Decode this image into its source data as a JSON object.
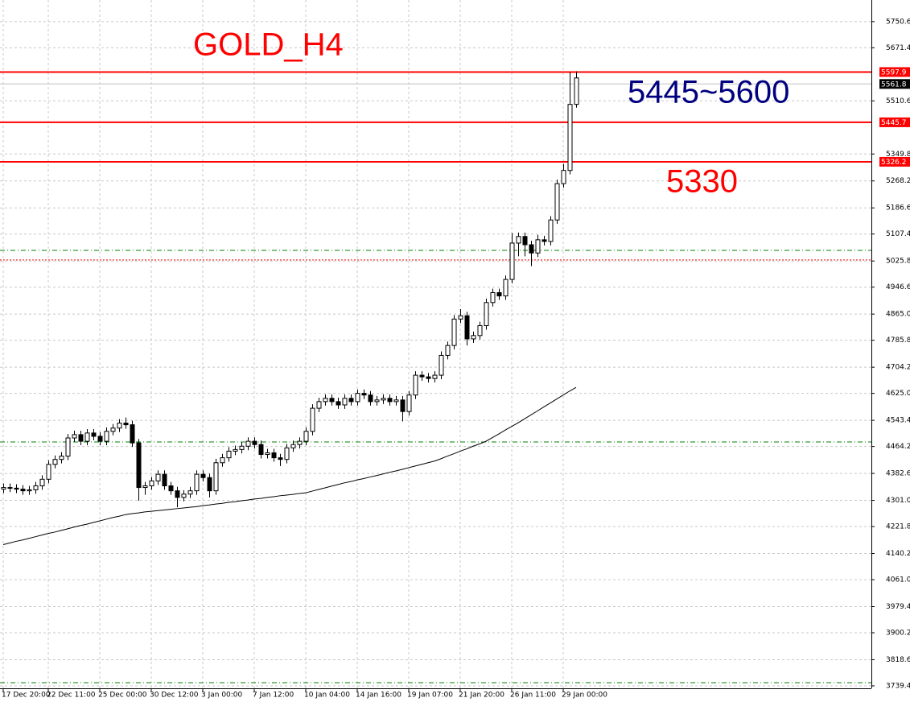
{
  "chart_data": {
    "type": "candlestick",
    "title": "GOLD_H4",
    "annotations": [
      {
        "text": "5445~5600",
        "color": "#000080"
      },
      {
        "text": "5330",
        "color": "#ff0000"
      }
    ],
    "title_color": "#ff0000",
    "open": [
      4335,
      4340,
      4338,
      4335,
      4330,
      4333,
      4345,
      4365,
      4410,
      4425,
      4435,
      4490,
      4500,
      4480,
      4505,
      4495,
      4480,
      4510,
      4520,
      4535,
      4530,
      4475,
      4340,
      4345,
      4360,
      4380,
      4345,
      4330,
      4310,
      4320,
      4330,
      4380,
      4370,
      4330,
      4415,
      4430,
      4450,
      4455,
      4465,
      4480,
      4470,
      4440,
      4445,
      4430,
      4425,
      4460,
      4470,
      4480,
      4510,
      4580,
      4600,
      4610,
      4600,
      4590,
      4610,
      4600,
      4625,
      4620,
      4600,
      4605,
      4610,
      4600,
      4605,
      4570,
      4620,
      4680,
      4675,
      4670,
      4680,
      4740,
      4770,
      4850,
      4860,
      4790,
      4800,
      4830,
      4900,
      4930,
      4920,
      4970,
      5080,
      5100,
      5075,
      5050,
      5090,
      5085,
      5150,
      5260,
      5300,
      5500
    ],
    "high": [
      4352,
      4352,
      4350,
      4347,
      4345,
      4357,
      4377,
      4422,
      4437,
      4447,
      4502,
      4512,
      4512,
      4517,
      4517,
      4507,
      4522,
      4532,
      4547,
      4552,
      4542,
      4487,
      4357,
      4372,
      4392,
      4392,
      4357,
      4342,
      4332,
      4342,
      4392,
      4392,
      4382,
      4427,
      4442,
      4462,
      4467,
      4477,
      4492,
      4492,
      4482,
      4457,
      4457,
      4442,
      4472,
      4482,
      4492,
      4522,
      4592,
      4612,
      4622,
      4622,
      4612,
      4622,
      4622,
      4637,
      4637,
      4632,
      4617,
      4622,
      4622,
      4617,
      4617,
      4632,
      4692,
      4692,
      4687,
      4692,
      4752,
      4782,
      4862,
      4880,
      4872,
      4812,
      4842,
      4912,
      4942,
      4942,
      4982,
      5110,
      5112,
      5112,
      5087,
      5105,
      5102,
      5162,
      5272,
      5320,
      5598,
      5600
    ],
    "low": [
      4323,
      4326,
      4323,
      4318,
      4318,
      4321,
      4333,
      4353,
      4398,
      4413,
      4423,
      4478,
      4468,
      4468,
      4483,
      4468,
      4468,
      4498,
      4508,
      4518,
      4463,
      4300,
      4318,
      4333,
      4348,
      4333,
      4318,
      4280,
      4298,
      4308,
      4318,
      4358,
      4310,
      4318,
      4403,
      4418,
      4438,
      4443,
      4453,
      4458,
      4428,
      4428,
      4418,
      4405,
      4413,
      4448,
      4458,
      4468,
      4498,
      4568,
      4588,
      4588,
      4578,
      4578,
      4588,
      4588,
      4608,
      4588,
      4588,
      4593,
      4588,
      4588,
      4540,
      4558,
      4608,
      4663,
      4658,
      4658,
      4668,
      4728,
      4758,
      4838,
      4770,
      4778,
      4788,
      4818,
      4888,
      4908,
      4908,
      4958,
      5040,
      5040,
      5010,
      5038,
      5073,
      5073,
      5138,
      5248,
      5288,
      5490
    ],
    "close": [
      4340,
      4338,
      4335,
      4330,
      4333,
      4345,
      4365,
      4410,
      4425,
      4435,
      4490,
      4500,
      4480,
      4505,
      4495,
      4480,
      4510,
      4520,
      4535,
      4530,
      4475,
      4340,
      4345,
      4360,
      4380,
      4345,
      4330,
      4310,
      4320,
      4330,
      4380,
      4370,
      4330,
      4415,
      4430,
      4450,
      4455,
      4465,
      4480,
      4470,
      4440,
      4445,
      4430,
      4425,
      4460,
      4470,
      4480,
      4510,
      4580,
      4600,
      4610,
      4600,
      4590,
      4610,
      4600,
      4625,
      4620,
      4600,
      4605,
      4610,
      4600,
      4605,
      4570,
      4620,
      4680,
      4675,
      4670,
      4680,
      4740,
      4770,
      4850,
      4860,
      4790,
      4800,
      4830,
      4900,
      4930,
      4920,
      4970,
      5080,
      5100,
      5075,
      5050,
      5090,
      5085,
      5150,
      5260,
      5300,
      5500,
      5580
    ],
    "ma": {
      "color": "#000000",
      "values": [
        4167,
        4172,
        4177,
        4181,
        4186,
        4191,
        4196,
        4201,
        4205,
        4210,
        4215,
        4220,
        4225,
        4229,
        4234,
        4239,
        4244,
        4249,
        4253,
        4258,
        4261,
        4263,
        4266,
        4268,
        4270,
        4272,
        4274,
        4276,
        4278,
        4280,
        4282,
        4285,
        4287,
        4290,
        4292,
        4295,
        4297,
        4300,
        4302,
        4305,
        4307,
        4310,
        4312,
        4315,
        4317,
        4319,
        4322,
        4324,
        4329,
        4334,
        4339,
        4344,
        4349,
        4354,
        4358,
        4363,
        4367,
        4372,
        4376,
        4381,
        4386,
        4390,
        4395,
        4400,
        4405,
        4410,
        4415,
        4420,
        4427,
        4435,
        4442,
        4450,
        4457,
        4465,
        4472,
        4480,
        4491,
        4502,
        4514,
        4525,
        4536,
        4548,
        4560,
        4572,
        4584,
        4596,
        4608,
        4620,
        4632,
        4643
      ]
    },
    "levels": [
      {
        "value": 5597.9,
        "color": "#ff0000",
        "style": "solid",
        "show_label": true
      },
      {
        "value": 5561.8,
        "color": "#c0c0c0",
        "style": "solid",
        "show_label": true
      },
      {
        "value": 5445.7,
        "color": "#ff0000",
        "style": "solid",
        "show_label": true
      },
      {
        "value": 5326.2,
        "color": "#ff0000",
        "style": "solid",
        "show_label": true
      },
      {
        "value": 5058,
        "color": "#008000",
        "style": "dashdot",
        "show_label": false
      },
      {
        "value": 5029,
        "color": "#ff0000",
        "style": "dotted",
        "show_label": false
      },
      {
        "value": 4478,
        "color": "#008000",
        "style": "dashdot",
        "show_label": false
      },
      {
        "value": 3749,
        "color": "#008000",
        "style": "dashdot",
        "show_label": false
      }
    ],
    "xticks": [
      {
        "value": 0,
        "label": "17 Dec 20:00"
      },
      {
        "value": 7,
        "label": "22 Dec 11:00"
      },
      {
        "value": 15,
        "label": "25 Dec 00:00"
      },
      {
        "value": 23,
        "label": "30 Dec 12:00"
      },
      {
        "value": 31,
        "label": "3 Jan 00:00"
      },
      {
        "value": 39,
        "label": "7 Jan 12:00"
      },
      {
        "value": 47,
        "label": "10 Jan 04:00"
      },
      {
        "value": 55,
        "label": "14 Jan 16:00"
      },
      {
        "value": 63,
        "label": "19 Jan 07:00"
      },
      {
        "value": 71,
        "label": "21 Jan 20:00"
      },
      {
        "value": 79,
        "label": "26 Jan 11:00"
      },
      {
        "value": 87,
        "label": "29 Jan 00:00"
      }
    ],
    "ylim": [
      3732,
      5816
    ],
    "yticks": [
      5750.6,
      5671.4,
      5510.6,
      5349.8,
      5268.2,
      5186.6,
      5107.4,
      5025.8,
      4946.6,
      {
        "value": 4865,
        "label": "4865.0"
      },
      4785.8,
      4704.2,
      {
        "value": 4625,
        "label": "4625.0"
      },
      4543.4,
      4464.2,
      4382.6,
      {
        "value": 4301,
        "label": "4301.0"
      },
      4221.8,
      4140.2,
      {
        "value": 4061,
        "label": "4061.0"
      },
      3979.4,
      3900.2,
      3818.6,
      3739.4
    ],
    "grid": true
  }
}
